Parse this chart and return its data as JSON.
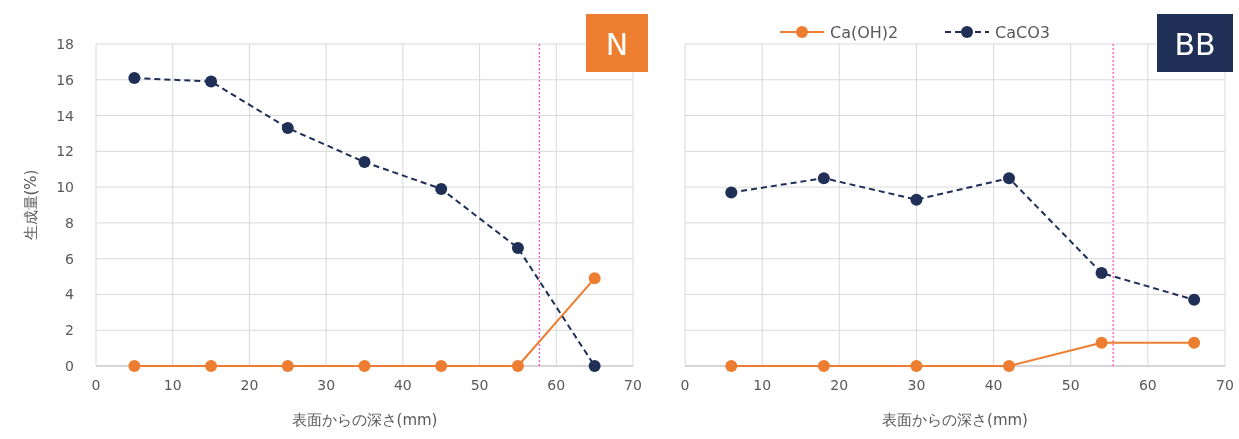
{
  "chart_data": [
    {
      "type": "line",
      "ylabel": "生成量(%)",
      "xlabel": "表面からの深さ(mm)",
      "annotations": [
        "N"
      ],
      "xlim": [
        0,
        70
      ],
      "xticks": [
        0,
        10,
        20,
        30,
        40,
        50,
        60,
        70
      ],
      "ylim": [
        0,
        18
      ],
      "yticks": [
        0,
        2,
        4,
        6,
        8,
        10,
        12,
        14,
        16,
        18
      ],
      "grid": true,
      "marker": "circle",
      "legend": false,
      "ref_lines": [
        {
          "axis": "x",
          "value": 57.8,
          "color": "#ff55bb",
          "line_style": "dotted"
        }
      ],
      "series": [
        {
          "color": "#ed7d31",
          "line_style": "solid",
          "x": [
            5,
            15,
            25,
            35,
            45,
            55,
            65
          ],
          "values": [
            0,
            0,
            0,
            0,
            0,
            0,
            4.9
          ]
        },
        {
          "color": "#1f2f56",
          "line_style": "dashed",
          "x": [
            5,
            15,
            25,
            35,
            45,
            55,
            65
          ],
          "values": [
            16.1,
            15.9,
            13.3,
            11.4,
            9.9,
            6.6,
            0
          ]
        }
      ]
    },
    {
      "type": "line",
      "xlabel": "表面からの深さ(mm)",
      "annotations": [
        "BB"
      ],
      "xlim": [
        0,
        70
      ],
      "xticks": [
        0,
        10,
        20,
        30,
        40,
        50,
        60,
        70
      ],
      "ylim": [
        0,
        18
      ],
      "yticks": [
        0,
        2,
        4,
        6,
        8,
        10,
        12,
        14,
        16,
        18
      ],
      "tick_labels": "x",
      "grid": true,
      "marker": "circle",
      "legend": "top",
      "ref_lines": [
        {
          "axis": "x",
          "value": 55.5,
          "color": "#ff55bb",
          "line_style": "dotted"
        }
      ],
      "series": [
        {
          "name": "Ca(OH)2",
          "color": "#ed7d31",
          "line_style": "solid",
          "x": [
            6,
            18,
            30,
            42,
            54,
            66
          ],
          "values": [
            0,
            0,
            0,
            0,
            1.3,
            1.3
          ]
        },
        {
          "name": "CaCO3",
          "color": "#1f2f56",
          "line_style": "dashed",
          "x": [
            6,
            18,
            30,
            42,
            54,
            66
          ],
          "values": [
            9.7,
            10.5,
            9.3,
            10.5,
            5.2,
            3.7
          ]
        }
      ]
    }
  ]
}
